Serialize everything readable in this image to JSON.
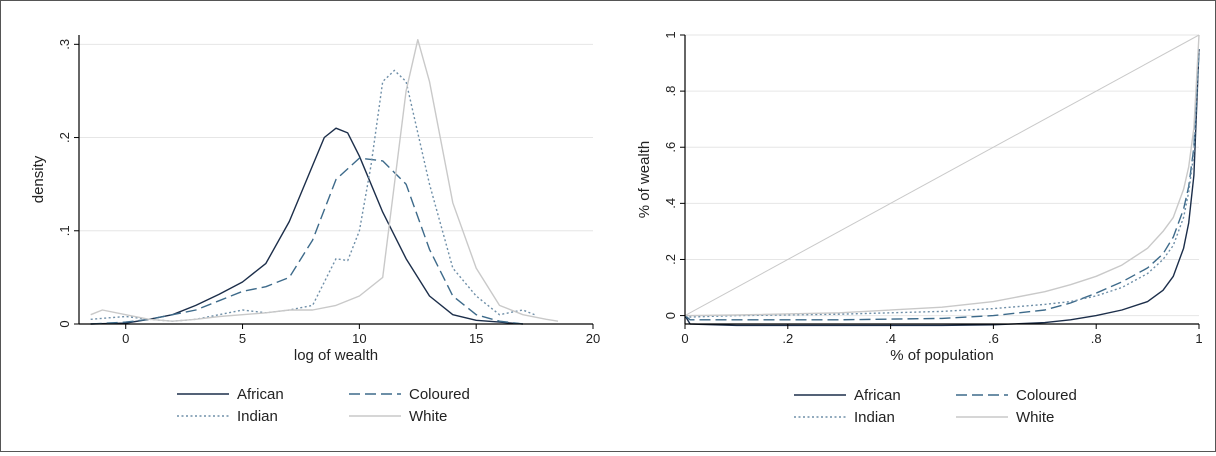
{
  "colors": {
    "African": "#1c2e4a",
    "Coloured": "#3d6a8a",
    "Indian": "#6f8fa8",
    "White": "#c9c9c9"
  },
  "chart_data": [
    {
      "type": "line",
      "title": "",
      "xlabel": "log of wealth",
      "ylabel": "density",
      "xlim": [
        -2,
        20
      ],
      "ylim": [
        0,
        0.31
      ],
      "xticks": [
        0,
        5,
        10,
        15,
        20
      ],
      "xtick_labels": [
        "0",
        "5",
        "10",
        "15",
        "20"
      ],
      "yticks": [
        0,
        0.1,
        0.2,
        0.3
      ],
      "ytick_labels": [
        "0",
        ".1",
        ".2",
        ".3"
      ],
      "grid": true,
      "legend_position": "bottom",
      "series": [
        {
          "name": "African",
          "style": "solid",
          "x": [
            -1.5,
            0,
            1,
            2,
            3,
            4,
            5,
            6,
            7,
            8,
            8.5,
            9,
            9.5,
            10,
            11,
            12,
            13,
            14,
            15,
            16,
            17
          ],
          "y": [
            0,
            0.001,
            0.005,
            0.01,
            0.02,
            0.032,
            0.045,
            0.065,
            0.11,
            0.17,
            0.2,
            0.21,
            0.205,
            0.18,
            0.12,
            0.07,
            0.03,
            0.01,
            0.004,
            0.002,
            0
          ]
        },
        {
          "name": "Coloured",
          "style": "dash",
          "x": [
            -1.5,
            0,
            1,
            2,
            3,
            4,
            5,
            6,
            7,
            8,
            9,
            10,
            11,
            12,
            13,
            14,
            15,
            16,
            17
          ],
          "y": [
            0,
            0.002,
            0.005,
            0.01,
            0.015,
            0.025,
            0.035,
            0.04,
            0.05,
            0.09,
            0.155,
            0.178,
            0.175,
            0.15,
            0.08,
            0.03,
            0.01,
            0.003,
            0
          ]
        },
        {
          "name": "Indian",
          "style": "dot",
          "x": [
            -1.5,
            0,
            1,
            2,
            3,
            4,
            5,
            6,
            7,
            8,
            9,
            9.5,
            10,
            10.5,
            11,
            11.5,
            12,
            13,
            14,
            15,
            16,
            17,
            17.5
          ],
          "y": [
            0.005,
            0.008,
            0.005,
            0.003,
            0.005,
            0.01,
            0.015,
            0.012,
            0.015,
            0.02,
            0.07,
            0.068,
            0.1,
            0.17,
            0.26,
            0.272,
            0.26,
            0.15,
            0.06,
            0.03,
            0.01,
            0.015,
            0.01
          ]
        },
        {
          "name": "White",
          "style": "solid",
          "x": [
            -1.5,
            -1,
            0,
            1,
            2,
            3,
            4,
            5,
            6,
            7,
            8,
            9,
            10,
            11,
            11.5,
            12,
            12.5,
            13,
            14,
            15,
            16,
            17,
            18,
            18.5
          ],
          "y": [
            0.01,
            0.015,
            0.01,
            0.005,
            0.003,
            0.005,
            0.008,
            0.01,
            0.012,
            0.015,
            0.015,
            0.02,
            0.03,
            0.05,
            0.15,
            0.25,
            0.305,
            0.26,
            0.13,
            0.06,
            0.02,
            0.01,
            0.005,
            0.003
          ]
        }
      ]
    },
    {
      "type": "line",
      "title": "",
      "xlabel": "% of population",
      "ylabel": "% of wealth",
      "xlim": [
        0,
        1
      ],
      "ylim": [
        -0.03,
        1
      ],
      "xticks": [
        0,
        0.2,
        0.4,
        0.6,
        0.8,
        1
      ],
      "xtick_labels": [
        "0",
        ".2",
        ".4",
        ".6",
        ".8",
        "1"
      ],
      "yticks": [
        0,
        0.2,
        0.4,
        0.6,
        0.8,
        1
      ],
      "ytick_labels": [
        "0",
        ".2",
        ".4",
        ".6",
        ".8",
        "1"
      ],
      "grid": true,
      "legend_position": "bottom",
      "series": [
        {
          "name": "African",
          "style": "solid",
          "x": [
            0,
            0.01,
            0.1,
            0.3,
            0.5,
            0.6,
            0.7,
            0.75,
            0.8,
            0.85,
            0.9,
            0.93,
            0.95,
            0.97,
            0.98,
            0.99,
            1
          ],
          "y": [
            0,
            -0.03,
            -0.035,
            -0.035,
            -0.035,
            -0.033,
            -0.025,
            -0.015,
            0.0,
            0.02,
            0.05,
            0.09,
            0.14,
            0.24,
            0.33,
            0.5,
            0.95
          ]
        },
        {
          "name": "Coloured",
          "style": "dash",
          "x": [
            0,
            0.01,
            0.1,
            0.3,
            0.5,
            0.6,
            0.7,
            0.75,
            0.8,
            0.85,
            0.9,
            0.93,
            0.95,
            0.97,
            0.98,
            0.99,
            1
          ],
          "y": [
            0,
            -0.015,
            -0.015,
            -0.015,
            -0.01,
            0.0,
            0.02,
            0.045,
            0.08,
            0.12,
            0.17,
            0.22,
            0.28,
            0.38,
            0.46,
            0.6,
            0.95
          ]
        },
        {
          "name": "Indian",
          "style": "dot",
          "x": [
            0,
            0.01,
            0.1,
            0.3,
            0.5,
            0.6,
            0.7,
            0.75,
            0.8,
            0.85,
            0.9,
            0.93,
            0.95,
            0.97,
            0.98,
            0.99,
            1
          ],
          "y": [
            0,
            -0.005,
            0.0,
            0.005,
            0.015,
            0.025,
            0.04,
            0.05,
            0.07,
            0.1,
            0.15,
            0.2,
            0.25,
            0.35,
            0.44,
            0.58,
            0.95
          ]
        },
        {
          "name": "White",
          "style": "solid",
          "x": [
            0,
            0.01,
            0.1,
            0.3,
            0.5,
            0.6,
            0.7,
            0.75,
            0.8,
            0.85,
            0.9,
            0.93,
            0.95,
            0.97,
            0.98,
            0.99,
            1
          ],
          "y": [
            0,
            0.0,
            0.002,
            0.01,
            0.03,
            0.05,
            0.085,
            0.11,
            0.14,
            0.18,
            0.24,
            0.3,
            0.35,
            0.45,
            0.53,
            0.67,
            1.0
          ]
        },
        {
          "name": "",
          "style": "equality",
          "x": [
            0,
            1
          ],
          "y": [
            0,
            1
          ]
        }
      ]
    }
  ]
}
